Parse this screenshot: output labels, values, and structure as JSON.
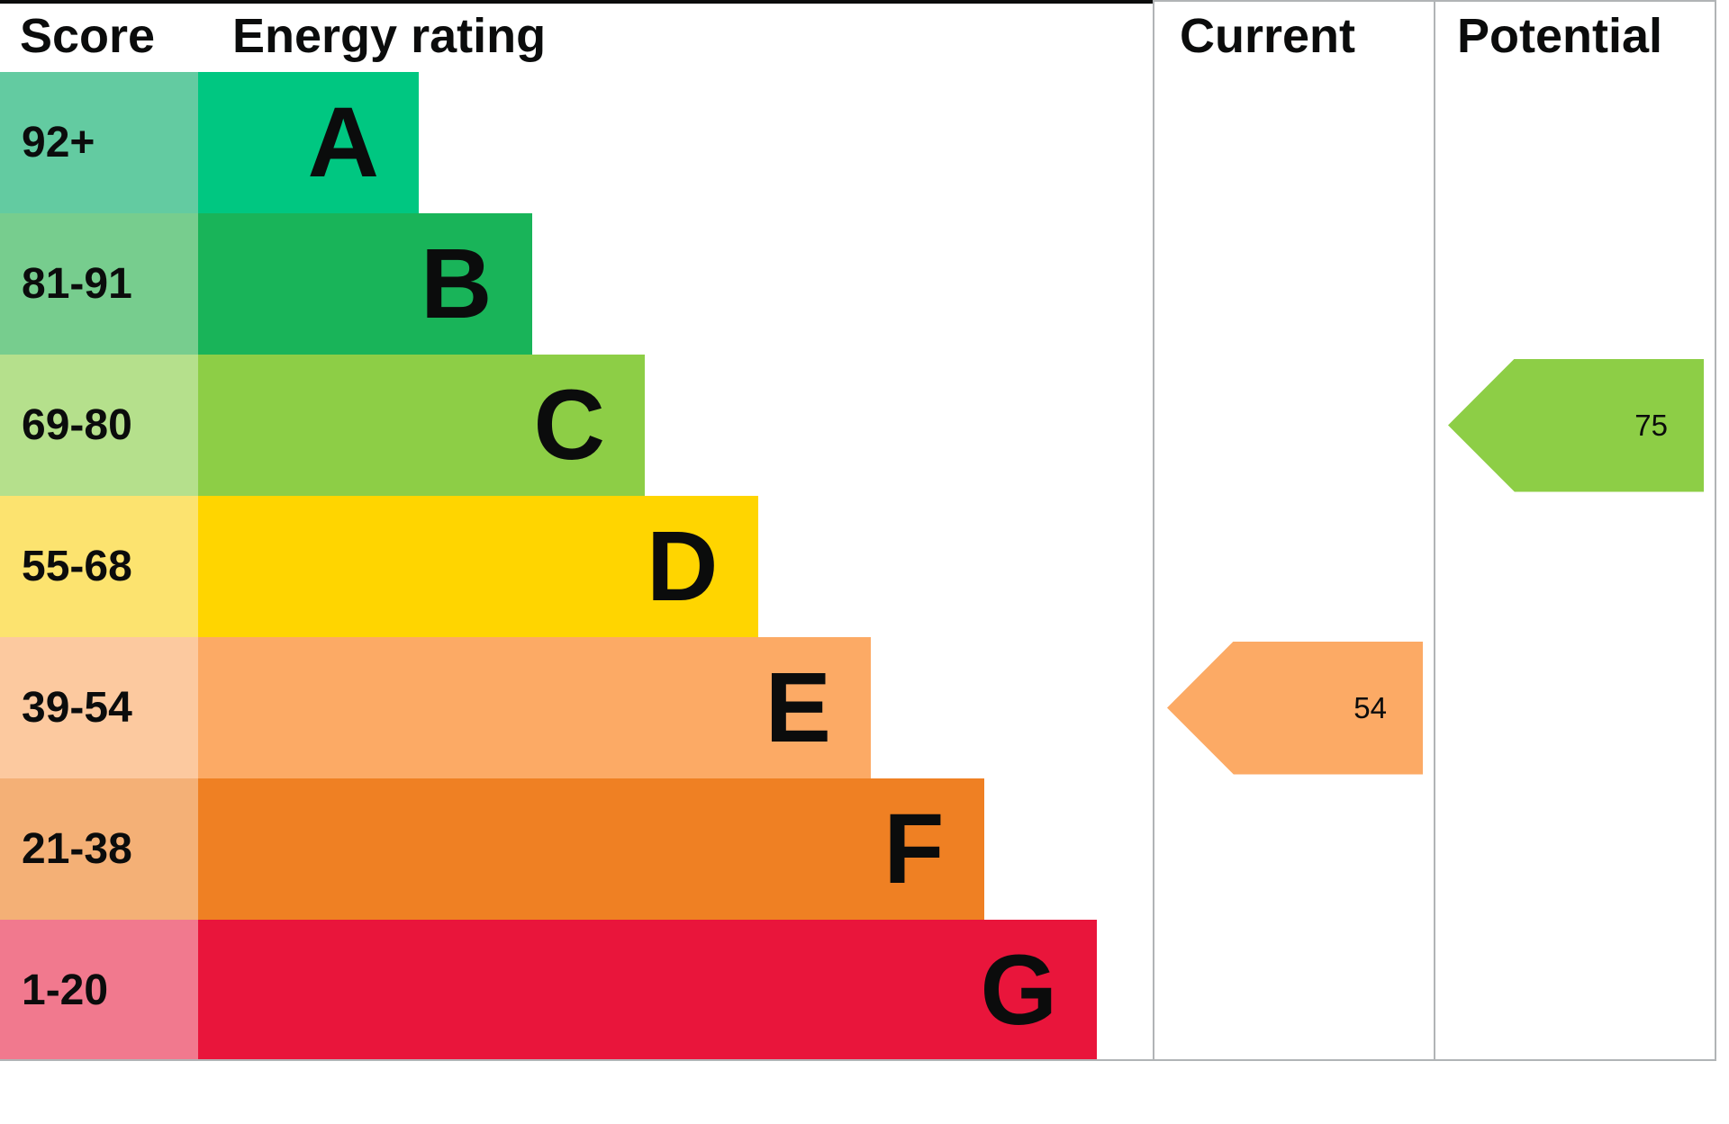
{
  "chart_data": {
    "type": "bar",
    "subtype": "epc-energy-rating",
    "title": "Energy rating",
    "headers": {
      "score": "Score",
      "rating": "Energy rating",
      "current": "Current",
      "potential": "Potential"
    },
    "bands": [
      {
        "letter": "A",
        "score_range": "92+",
        "band_color": "#00c781",
        "score_color": "#63cba1"
      },
      {
        "letter": "B",
        "score_range": "81-91",
        "band_color": "#19b459",
        "score_color": "#77cd8e"
      },
      {
        "letter": "C",
        "score_range": "69-80",
        "band_color": "#8dce46",
        "score_color": "#b5e08c"
      },
      {
        "letter": "D",
        "score_range": "55-68",
        "band_color": "#ffd500",
        "score_color": "#fce36f"
      },
      {
        "letter": "E",
        "score_range": "39-54",
        "band_color": "#fcaa65",
        "score_color": "#fcc99f"
      },
      {
        "letter": "F",
        "score_range": "21-38",
        "band_color": "#ef8023",
        "score_color": "#f4b076"
      },
      {
        "letter": "G",
        "score_range": "1-20",
        "band_color": "#e9153b",
        "score_color": "#f1798e"
      }
    ],
    "current": {
      "value": 54,
      "band": "E",
      "color": "#fcaa65"
    },
    "potential": {
      "value": 75,
      "band": "C",
      "color": "#8dce46"
    },
    "layout": {
      "grid": "off",
      "current_column": "arrow points left at band row of current score",
      "potential_column": "arrow points left at band row of potential score"
    }
  }
}
